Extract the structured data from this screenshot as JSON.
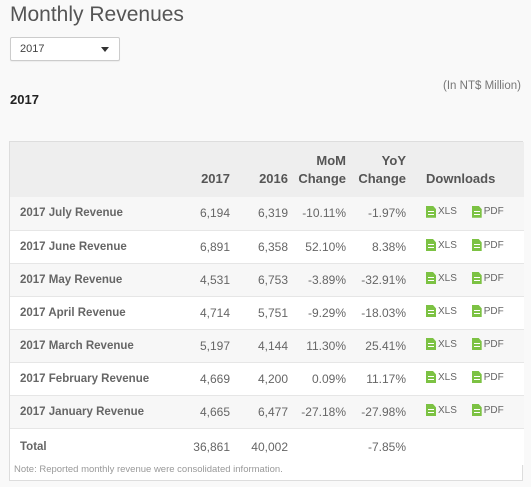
{
  "page": {
    "title": "Monthly Revenues",
    "unit_note": "(In NT$ Million)",
    "year_heading": "2017"
  },
  "year_select": {
    "value": "2017"
  },
  "table": {
    "headers": {
      "col_2017": "2017",
      "col_2016": "2016",
      "mom_line1": "MoM",
      "mom_line2": "Change",
      "yoy_line1": "YoY",
      "yoy_line2": "Change",
      "downloads": "Downloads"
    },
    "rows": [
      {
        "label": "2017 July Revenue",
        "y2017": "6,194",
        "y2016": "6,319",
        "mom": "-10.11%",
        "yoy": "-1.97%"
      },
      {
        "label": "2017 June Revenue",
        "y2017": "6,891",
        "y2016": "6,358",
        "mom": "52.10%",
        "yoy": "8.38%"
      },
      {
        "label": "2017 May Revenue",
        "y2017": "4,531",
        "y2016": "6,753",
        "mom": "-3.89%",
        "yoy": "-32.91%"
      },
      {
        "label": "2017 April Revenue",
        "y2017": "4,714",
        "y2016": "5,751",
        "mom": "-9.29%",
        "yoy": "-18.03%"
      },
      {
        "label": "2017 March Revenue",
        "y2017": "5,197",
        "y2016": "4,144",
        "mom": "11.30%",
        "yoy": "25.41%"
      },
      {
        "label": "2017 February Revenue",
        "y2017": "4,669",
        "y2016": "4,200",
        "mom": "0.09%",
        "yoy": "11.17%"
      },
      {
        "label": "2017 January Revenue",
        "y2017": "4,665",
        "y2016": "6,477",
        "mom": "-27.18%",
        "yoy": "-27.98%"
      }
    ],
    "download_labels": {
      "xls": "XLS",
      "pdf": "PDF"
    },
    "download_icon": "file-icon",
    "icon_color": "#7cc243",
    "total": {
      "label": "Total",
      "y2017": "36,861",
      "y2016": "40,002",
      "mom": "",
      "yoy": "-7.85%"
    },
    "footnote": "Note: Reported monthly revenue were consolidated information."
  }
}
